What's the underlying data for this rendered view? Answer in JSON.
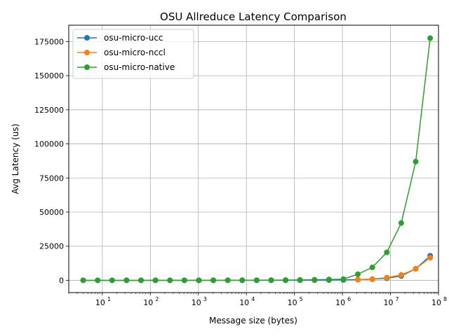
{
  "chart_data": {
    "type": "line",
    "title": "OSU Allreduce Latency Comparison",
    "xlabel": "Message size (bytes)",
    "ylabel": "Avg Latency (us)",
    "xscale": "log",
    "xlim": [
      2,
      100000000
    ],
    "ylim": [
      -9000,
      187000
    ],
    "grid": true,
    "legend_position": "upper-left",
    "x_ticks": [
      {
        "value": 10,
        "base": "10",
        "exp": "1"
      },
      {
        "value": 100,
        "base": "10",
        "exp": "2"
      },
      {
        "value": 1000,
        "base": "10",
        "exp": "3"
      },
      {
        "value": 10000,
        "base": "10",
        "exp": "4"
      },
      {
        "value": 100000,
        "base": "10",
        "exp": "5"
      },
      {
        "value": 1000000,
        "base": "10",
        "exp": "6"
      },
      {
        "value": 10000000,
        "base": "10",
        "exp": "7"
      },
      {
        "value": 100000000,
        "base": "10",
        "exp": "8"
      }
    ],
    "y_ticks": [
      {
        "value": 0,
        "label": "0"
      },
      {
        "value": 25000,
        "label": "25000"
      },
      {
        "value": 50000,
        "label": "50000"
      },
      {
        "value": 75000,
        "label": "75000"
      },
      {
        "value": 100000,
        "label": "100000"
      },
      {
        "value": 125000,
        "label": "125000"
      },
      {
        "value": 150000,
        "label": "150000"
      },
      {
        "value": 175000,
        "label": "175000"
      }
    ],
    "series": [
      {
        "name": "osu-micro-ucc",
        "color": "#1f77b4",
        "x": [
          4,
          8,
          16,
          32,
          64,
          128,
          256,
          512,
          1024,
          2048,
          4096,
          8192,
          16384,
          32768,
          65536,
          131072,
          262144,
          524288,
          1048576,
          2097152,
          4194304,
          8388608,
          16777216,
          33554432,
          67108864
        ],
        "y": [
          5,
          5,
          5,
          5,
          6,
          6,
          7,
          8,
          10,
          12,
          15,
          20,
          28,
          40,
          60,
          90,
          130,
          200,
          300,
          500,
          800,
          1500,
          3200,
          8500,
          18000
        ]
      },
      {
        "name": "osu-micro-nccl",
        "color": "#ff7f0e",
        "x": [
          2097152,
          4194304,
          8388608,
          16777216,
          33554432,
          67108864
        ],
        "y": [
          500,
          1000,
          2000,
          4000,
          8500,
          16500
        ]
      },
      {
        "name": "osu-micro-native",
        "color": "#2ca02c",
        "x": [
          4,
          8,
          16,
          32,
          64,
          128,
          256,
          512,
          1024,
          2048,
          4096,
          8192,
          16384,
          32768,
          65536,
          131072,
          262144,
          524288,
          1048576,
          2097152,
          4194304,
          8388608,
          16777216,
          33554432,
          67108864
        ],
        "y": [
          10,
          10,
          10,
          12,
          12,
          15,
          18,
          22,
          30,
          40,
          55,
          80,
          110,
          150,
          200,
          280,
          400,
          600,
          900,
          4500,
          9500,
          20500,
          42000,
          87000,
          177500
        ]
      }
    ]
  }
}
